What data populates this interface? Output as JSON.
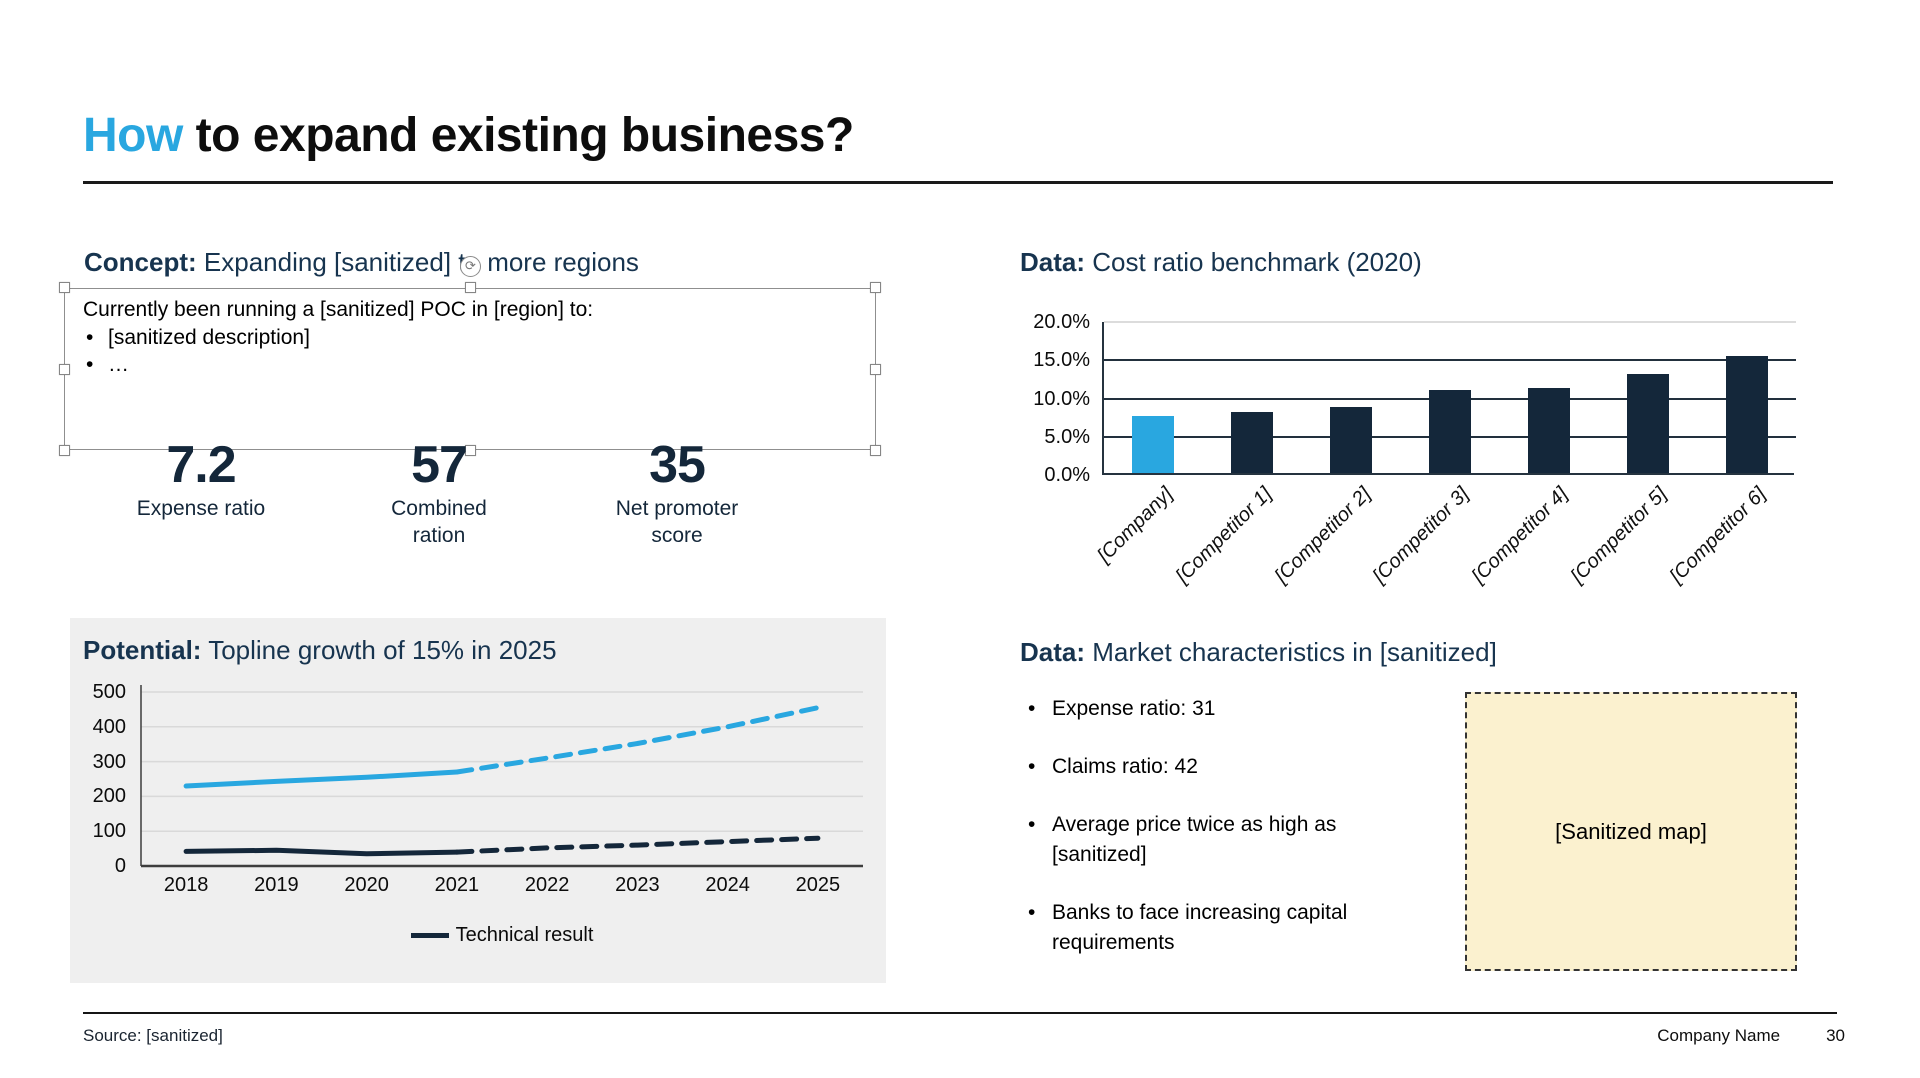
{
  "page": {
    "title": {
      "highlight": "How",
      "rest": " to expand existing business?"
    },
    "footer": {
      "source": "Source: [sanitized]",
      "company": "Company Name",
      "page_number": "30"
    }
  },
  "colors": {
    "accent_blue": "#29A7E0",
    "navy": "#14273A",
    "heading_navy": "#17344F",
    "panel_gray": "#EFEFEF",
    "map_beige": "#FBF1CF"
  },
  "concept": {
    "label": "Concept:",
    "title_rest": " Expanding [sanitized] to more regions",
    "textbox": {
      "intro": "Currently been running a [sanitized] POC in [region] to:",
      "bullets": [
        "[sanitized description]",
        "…"
      ]
    },
    "kpis": [
      {
        "value": "7.2",
        "label": "Expense ratio"
      },
      {
        "value": "57",
        "label": "Combined ration"
      },
      {
        "value": "35",
        "label": "Net promoter score"
      }
    ]
  },
  "cost_benchmark": {
    "label": "Data:",
    "title_rest": " Cost ratio benchmark (2020)"
  },
  "potential": {
    "label": "Potential:",
    "title_rest": " Topline growth of 15% in 2025"
  },
  "market": {
    "label": "Data:",
    "title_rest": " Market characteristics in [sanitized]",
    "bullets": [
      "Expense ratio: 31",
      "Claims ratio: 42",
      "Average price twice as high as [sanitized]",
      "Banks to face increasing capital requirements"
    ],
    "map_placeholder": "[Sanitized map]"
  },
  "chart_data": [
    {
      "id": "cost_ratio_benchmark",
      "type": "bar",
      "title": "Data: Cost ratio benchmark (2020)",
      "categories": [
        "[Company]",
        "[Competitor 1]",
        "[Competitor 2]",
        "[Competitor 3]",
        "[Competitor 4]",
        "[Competitor 5]",
        "[Competitor 6]"
      ],
      "values": [
        7.5,
        8.0,
        8.6,
        10.9,
        11.1,
        13.0,
        15.3
      ],
      "unit": "%",
      "ylim": [
        0,
        20
      ],
      "ytick_labels": [
        "20.0%",
        "15.0%",
        "10.0%",
        "5.0%",
        "0.0%"
      ],
      "bar_colors": [
        "#29A7E0",
        "#14273A",
        "#14273A",
        "#14273A",
        "#14273A",
        "#14273A",
        "#14273A"
      ],
      "grid": true,
      "legend": "none"
    },
    {
      "id": "topline_growth",
      "type": "line",
      "title": "Potential: Topline growth of 15% in 2025",
      "x": [
        "2018",
        "2019",
        "2020",
        "2021",
        "2022",
        "2023",
        "2024",
        "2025"
      ],
      "ylim": [
        0,
        500
      ],
      "yticks": [
        500,
        400,
        300,
        200,
        100,
        0
      ],
      "solid_until_index": 3,
      "dashed_note": "values after 2021 are forecast, drawn dashed",
      "series": [
        {
          "name": "Topline",
          "color": "#29A7E0",
          "values": [
            230,
            243,
            255,
            270,
            310,
            352,
            400,
            455
          ],
          "in_legend": false
        },
        {
          "name": "Technical result",
          "color": "#14273A",
          "values": [
            42,
            45,
            35,
            40,
            52,
            60,
            70,
            80
          ],
          "in_legend": true
        }
      ],
      "legend_position": "bottom",
      "grid": true
    }
  ]
}
